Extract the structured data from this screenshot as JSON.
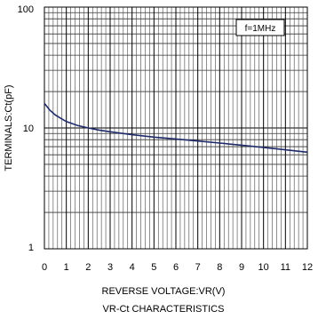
{
  "chart_data": {
    "type": "line",
    "title": "VR-Ct CHARACTERISTICS",
    "xlabel": "REVERSE VOLTAGE:VR(V)",
    "ylabel": "TERMINALS:Ct(pF)",
    "x_ticks": [
      "0",
      "1",
      "2",
      "3",
      "4",
      "5",
      "6",
      "7",
      "8",
      "9",
      "10",
      "11",
      "12"
    ],
    "y_ticks": [
      "1",
      "10",
      "100"
    ],
    "xlim": [
      0,
      12
    ],
    "ylim": [
      1,
      100
    ],
    "y_scale": "log",
    "grid": true,
    "annotation": "f=1MHz",
    "line_color": "#1f2a6b",
    "series": [
      {
        "x": [
          0,
          0.25,
          0.5,
          0.75,
          1,
          1.5,
          2,
          2.5,
          3,
          4,
          5,
          6,
          7,
          8,
          9,
          10,
          11,
          12
        ],
        "y": [
          16.0,
          14.0,
          12.8,
          12.0,
          11.3,
          10.5,
          10.0,
          9.6,
          9.3,
          8.8,
          8.4,
          8.1,
          7.8,
          7.5,
          7.2,
          6.9,
          6.6,
          6.3
        ]
      }
    ]
  }
}
